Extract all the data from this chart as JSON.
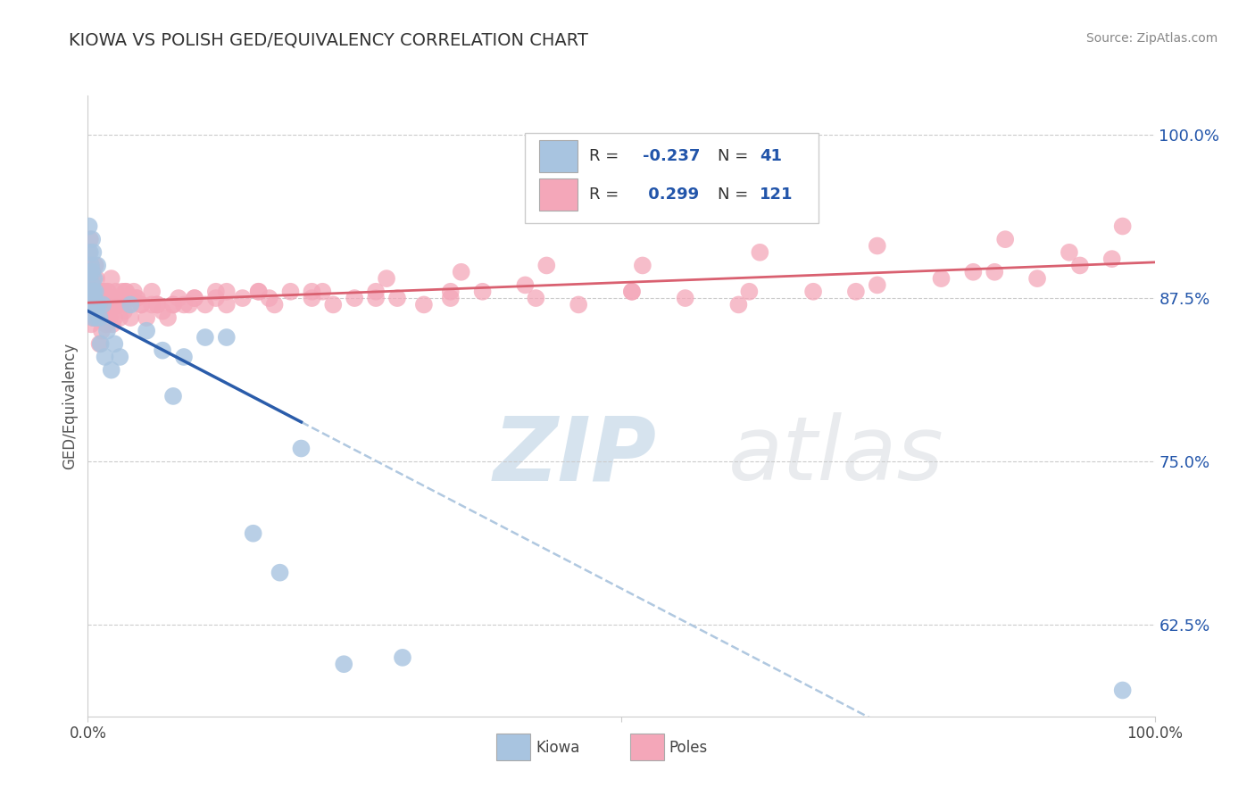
{
  "title": "KIOWA VS POLISH GED/EQUIVALENCY CORRELATION CHART",
  "source": "Source: ZipAtlas.com",
  "ylabel": "GED/Equivalency",
  "xlim": [
    0.0,
    1.0
  ],
  "ylim": [
    0.555,
    1.03
  ],
  "yticks": [
    0.625,
    0.75,
    0.875,
    1.0
  ],
  "ytick_labels": [
    "62.5%",
    "75.0%",
    "87.5%",
    "100.0%"
  ],
  "kiowa_R": -0.237,
  "kiowa_N": 41,
  "poles_R": 0.299,
  "poles_N": 121,
  "kiowa_color": "#a8c4e0",
  "poles_color": "#f4a7b9",
  "kiowa_line_color": "#2a5caa",
  "poles_line_color": "#d96070",
  "kiowa_line_solid_end": 0.2,
  "watermark": "ZIPatlas",
  "watermark_blue": "#8ab0d0",
  "watermark_gray": "#c0c8d0",
  "background_color": "#ffffff",
  "grid_color": "#cccccc",
  "title_color": "#333333",
  "kiowa_x": [
    0.001,
    0.002,
    0.002,
    0.003,
    0.003,
    0.003,
    0.004,
    0.004,
    0.004,
    0.005,
    0.005,
    0.005,
    0.006,
    0.006,
    0.007,
    0.007,
    0.008,
    0.008,
    0.009,
    0.01,
    0.011,
    0.012,
    0.014,
    0.016,
    0.018,
    0.022,
    0.025,
    0.03,
    0.04,
    0.055,
    0.07,
    0.08,
    0.09,
    0.11,
    0.13,
    0.155,
    0.18,
    0.2,
    0.24,
    0.295,
    0.97
  ],
  "kiowa_y": [
    0.93,
    0.91,
    0.895,
    0.88,
    0.87,
    0.9,
    0.885,
    0.92,
    0.895,
    0.91,
    0.86,
    0.88,
    0.875,
    0.89,
    0.87,
    0.88,
    0.87,
    0.86,
    0.9,
    0.87,
    0.86,
    0.84,
    0.87,
    0.83,
    0.85,
    0.82,
    0.84,
    0.83,
    0.87,
    0.85,
    0.835,
    0.8,
    0.83,
    0.845,
    0.845,
    0.695,
    0.665,
    0.76,
    0.595,
    0.6,
    0.575
  ],
  "poles_x": [
    0.001,
    0.002,
    0.002,
    0.003,
    0.003,
    0.003,
    0.004,
    0.004,
    0.005,
    0.005,
    0.006,
    0.006,
    0.007,
    0.007,
    0.007,
    0.008,
    0.008,
    0.009,
    0.009,
    0.01,
    0.01,
    0.011,
    0.011,
    0.012,
    0.012,
    0.013,
    0.013,
    0.014,
    0.014,
    0.015,
    0.015,
    0.016,
    0.017,
    0.018,
    0.019,
    0.02,
    0.021,
    0.022,
    0.023,
    0.024,
    0.025,
    0.026,
    0.028,
    0.03,
    0.032,
    0.034,
    0.036,
    0.038,
    0.04,
    0.043,
    0.046,
    0.05,
    0.055,
    0.06,
    0.065,
    0.07,
    0.075,
    0.08,
    0.085,
    0.095,
    0.1,
    0.11,
    0.12,
    0.13,
    0.145,
    0.16,
    0.175,
    0.19,
    0.21,
    0.23,
    0.25,
    0.27,
    0.29,
    0.315,
    0.34,
    0.37,
    0.41,
    0.46,
    0.51,
    0.56,
    0.62,
    0.68,
    0.74,
    0.8,
    0.85,
    0.89,
    0.93,
    0.96,
    0.002,
    0.003,
    0.004,
    0.005,
    0.006,
    0.007,
    0.008,
    0.009,
    0.01,
    0.012,
    0.014,
    0.016,
    0.018,
    0.02,
    0.025,
    0.03,
    0.035,
    0.04,
    0.05,
    0.06,
    0.08,
    0.1,
    0.13,
    0.17,
    0.22,
    0.28,
    0.35,
    0.43,
    0.52,
    0.63,
    0.74,
    0.86,
    0.003,
    0.005,
    0.007,
    0.01,
    0.015,
    0.022,
    0.032,
    0.045,
    0.065,
    0.09,
    0.12,
    0.16,
    0.21,
    0.27,
    0.34,
    0.42,
    0.51,
    0.61,
    0.72,
    0.83,
    0.92,
    0.97
  ],
  "poles_y": [
    0.91,
    0.895,
    0.88,
    0.87,
    0.9,
    0.885,
    0.88,
    0.895,
    0.87,
    0.88,
    0.875,
    0.86,
    0.87,
    0.88,
    0.9,
    0.89,
    0.87,
    0.86,
    0.88,
    0.87,
    0.865,
    0.87,
    0.84,
    0.88,
    0.86,
    0.87,
    0.85,
    0.88,
    0.86,
    0.88,
    0.87,
    0.86,
    0.855,
    0.87,
    0.88,
    0.86,
    0.87,
    0.89,
    0.855,
    0.87,
    0.86,
    0.88,
    0.87,
    0.86,
    0.875,
    0.865,
    0.88,
    0.87,
    0.86,
    0.88,
    0.875,
    0.87,
    0.86,
    0.88,
    0.87,
    0.865,
    0.86,
    0.87,
    0.875,
    0.87,
    0.875,
    0.87,
    0.88,
    0.87,
    0.875,
    0.88,
    0.87,
    0.88,
    0.875,
    0.87,
    0.875,
    0.88,
    0.875,
    0.87,
    0.875,
    0.88,
    0.885,
    0.87,
    0.88,
    0.875,
    0.88,
    0.88,
    0.885,
    0.89,
    0.895,
    0.89,
    0.9,
    0.905,
    0.92,
    0.88,
    0.87,
    0.89,
    0.88,
    0.87,
    0.875,
    0.86,
    0.87,
    0.88,
    0.86,
    0.87,
    0.88,
    0.86,
    0.875,
    0.87,
    0.88,
    0.875,
    0.87,
    0.87,
    0.87,
    0.875,
    0.88,
    0.875,
    0.88,
    0.89,
    0.895,
    0.9,
    0.9,
    0.91,
    0.915,
    0.92,
    0.855,
    0.86,
    0.86,
    0.865,
    0.87,
    0.875,
    0.88,
    0.875,
    0.87,
    0.87,
    0.875,
    0.88,
    0.88,
    0.875,
    0.88,
    0.875,
    0.88,
    0.87,
    0.88,
    0.895,
    0.91,
    0.93
  ]
}
